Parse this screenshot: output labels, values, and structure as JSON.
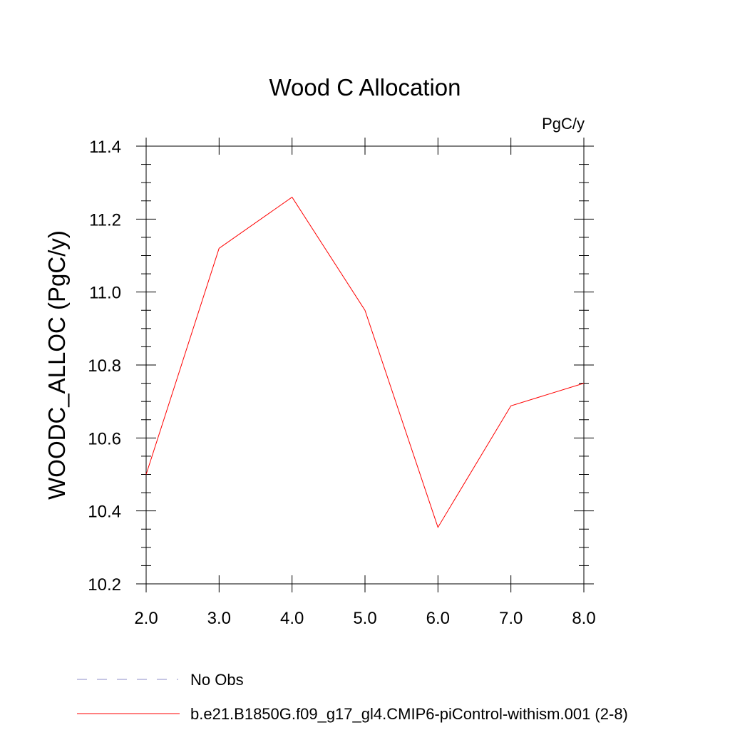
{
  "chart_data": {
    "type": "line",
    "title": "Wood C Allocation",
    "units_label": "PgC/y",
    "ylabel": "WOODC_ALLOC  (PgC/y)",
    "xlabel": "",
    "xlim": [
      2,
      8
    ],
    "ylim": [
      10.2,
      11.4
    ],
    "x_ticks": [
      "2.0",
      "3.0",
      "4.0",
      "5.0",
      "6.0",
      "7.0",
      "8.0"
    ],
    "y_ticks": [
      "10.2",
      "10.4",
      "10.6",
      "10.8",
      "11.0",
      "11.2",
      "11.4"
    ],
    "grid": false,
    "legend_position": "bottom-left",
    "series": [
      {
        "name": "b.e21.B1850G.f09_g17_gl4.CMIP6-piControl-withism.001 (2-8)",
        "color": "#ff0000",
        "style": "solid",
        "x": [
          2,
          3,
          4,
          5,
          6,
          7,
          8
        ],
        "y": [
          10.5,
          11.12,
          11.26,
          10.95,
          10.355,
          10.688,
          10.75
        ]
      }
    ],
    "legend": [
      {
        "label": "No Obs",
        "color": "#8c8cc8",
        "style": "dashed"
      },
      {
        "label": "b.e21.B1850G.f09_g17_gl4.CMIP6-piControl-withism.001 (2-8)",
        "color": "#ff0000",
        "style": "solid"
      }
    ]
  }
}
